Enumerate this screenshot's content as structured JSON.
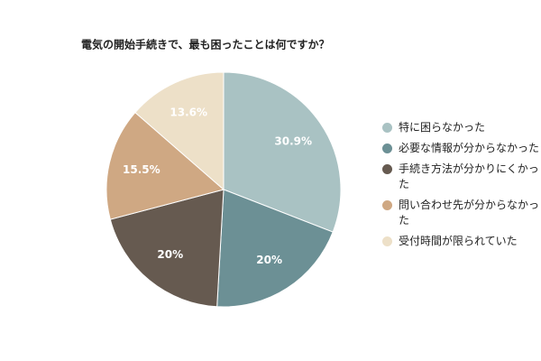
{
  "chart_data": {
    "type": "pie",
    "title": "電気の開始手続きで、最も困ったことは何ですか？",
    "categories": [
      "特に困らなかった",
      "必要な情報が分からなかった",
      "手続き方法が分かりにくかった",
      "問い合わせ先が分からなかった",
      "受付時間が限られていた"
    ],
    "values": [
      30.9,
      20,
      20,
      15.5,
      13.6
    ],
    "value_labels": [
      "30.9%",
      "20%",
      "20%",
      "15.5%",
      "13.6%"
    ],
    "colors": [
      "#a9c2c3",
      "#6c9095",
      "#665a50",
      "#cfa883",
      "#ede0c8"
    ],
    "legend": "right"
  }
}
